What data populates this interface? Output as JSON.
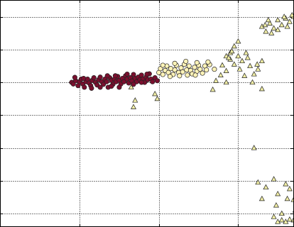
{
  "chart_data": {
    "type": "scatter",
    "title": "",
    "xlabel": "",
    "ylabel": "",
    "xlim": [
      -1,
      2.7
    ],
    "ylim": [
      -3.2,
      3.7
    ],
    "grid": true,
    "grid_style": "dotted",
    "x_ticks": [
      0,
      1,
      2
    ],
    "y_ticks": [
      -2.8,
      -1.8,
      -0.8,
      0.2,
      1.2,
      2.2,
      3.2
    ],
    "tick_labels_visible": false,
    "colors": {
      "dark_red": "#7a0f2e",
      "cream": "#fff3b8",
      "light_yellow": "#f1eea6",
      "edge": "#222222"
    },
    "series": [
      {
        "marker": "circle",
        "color": "#7a0f2e",
        "points": [
          [
            -0.1,
            1.2
          ],
          [
            -0.08,
            1.15
          ],
          [
            -0.05,
            1.25
          ],
          [
            -0.02,
            1.1
          ],
          [
            0.0,
            1.22
          ],
          [
            0.02,
            1.3
          ],
          [
            0.04,
            1.15
          ],
          [
            0.06,
            1.05
          ],
          [
            0.08,
            1.22
          ],
          [
            0.1,
            1.3
          ],
          [
            0.12,
            1.18
          ],
          [
            0.14,
            1.1
          ],
          [
            0.16,
            1.26
          ],
          [
            0.18,
            1.34
          ],
          [
            0.2,
            1.2
          ],
          [
            0.22,
            1.12
          ],
          [
            0.24,
            1.28
          ],
          [
            0.26,
            1.36
          ],
          [
            0.28,
            1.22
          ],
          [
            0.3,
            1.14
          ],
          [
            0.32,
            1.3
          ],
          [
            0.34,
            1.22
          ],
          [
            0.36,
            1.05
          ],
          [
            0.38,
            1.34
          ],
          [
            0.4,
            1.26
          ],
          [
            0.42,
            1.14
          ],
          [
            0.44,
            1.3
          ],
          [
            0.46,
            1.22
          ],
          [
            0.48,
            1.38
          ],
          [
            0.5,
            1.26
          ],
          [
            0.52,
            1.15
          ],
          [
            0.54,
            1.32
          ],
          [
            0.56,
            1.22
          ],
          [
            0.58,
            1.4
          ],
          [
            0.6,
            1.3
          ],
          [
            0.62,
            1.18
          ],
          [
            0.64,
            1.34
          ],
          [
            0.66,
            1.24
          ],
          [
            0.68,
            1.44
          ],
          [
            0.7,
            1.32
          ],
          [
            0.72,
            1.22
          ],
          [
            0.74,
            1.36
          ],
          [
            0.76,
            1.28
          ],
          [
            0.78,
            1.42
          ],
          [
            0.8,
            1.3
          ],
          [
            0.82,
            1.2
          ],
          [
            0.84,
            1.36
          ],
          [
            0.86,
            1.28
          ],
          [
            0.88,
            1.46
          ],
          [
            0.9,
            1.3
          ],
          [
            0.92,
            1.22
          ],
          [
            0.95,
            1.34
          ],
          [
            0.98,
            1.25
          ],
          [
            0.26,
            1.05
          ],
          [
            0.5,
            1.05
          ],
          [
            0.15,
            1.02
          ],
          [
            0.68,
            1.14
          ],
          [
            0.35,
            1.4
          ],
          [
            0.05,
            1.32
          ],
          [
            0.45,
            1.4
          ],
          [
            -0.06,
            1.35
          ],
          [
            0.6,
            1.45
          ],
          [
            0.78,
            1.2
          ],
          [
            0.4,
            1.08
          ],
          [
            0.85,
            1.45
          ]
        ]
      },
      {
        "marker": "circle",
        "color": "#fff3b8",
        "points": [
          [
            1.0,
            1.5
          ],
          [
            1.02,
            1.62
          ],
          [
            1.05,
            1.44
          ],
          [
            1.08,
            1.56
          ],
          [
            1.1,
            1.7
          ],
          [
            1.12,
            1.5
          ],
          [
            1.15,
            1.62
          ],
          [
            1.18,
            1.44
          ],
          [
            1.2,
            1.58
          ],
          [
            1.22,
            1.72
          ],
          [
            1.25,
            1.5
          ],
          [
            1.28,
            1.64
          ],
          [
            1.3,
            1.52
          ],
          [
            1.32,
            1.75
          ],
          [
            1.35,
            1.58
          ],
          [
            1.38,
            1.7
          ],
          [
            1.4,
            1.56
          ],
          [
            1.42,
            1.46
          ],
          [
            1.45,
            1.66
          ],
          [
            1.48,
            1.54
          ],
          [
            1.5,
            1.72
          ],
          [
            1.52,
            1.6
          ],
          [
            1.55,
            1.48
          ],
          [
            1.58,
            1.7
          ],
          [
            1.6,
            1.58
          ],
          [
            1.64,
            1.74
          ],
          [
            1.14,
            1.38
          ],
          [
            1.26,
            1.4
          ],
          [
            1.36,
            1.42
          ],
          [
            1.46,
            1.42
          ],
          [
            1.05,
            1.72
          ],
          [
            1.2,
            1.78
          ],
          [
            1.34,
            1.84
          ],
          [
            1.48,
            1.8
          ],
          [
            1.62,
            1.82
          ],
          [
            1.7,
            1.6
          ]
        ]
      },
      {
        "marker": "triangle",
        "color": "#f1eea6",
        "points": [
          [
            0.65,
            1.05
          ],
          [
            0.7,
            0.65
          ],
          [
            0.68,
            0.45
          ],
          [
            0.95,
            0.85
          ],
          [
            0.98,
            0.7
          ],
          [
            1.68,
            0.98
          ],
          [
            1.72,
            1.25
          ],
          [
            1.78,
            1.42
          ],
          [
            1.85,
            1.2
          ],
          [
            1.8,
            1.72
          ],
          [
            1.85,
            1.55
          ],
          [
            1.9,
            1.9
          ],
          [
            1.95,
            1.75
          ],
          [
            2.0,
            2.0
          ],
          [
            2.05,
            1.85
          ],
          [
            2.1,
            2.1
          ],
          [
            2.12,
            1.95
          ],
          [
            2.02,
            1.6
          ],
          [
            2.08,
            1.4
          ],
          [
            2.15,
            1.7
          ],
          [
            1.9,
            2.1
          ],
          [
            1.95,
            2.3
          ],
          [
            2.0,
            2.45
          ],
          [
            1.85,
            2.0
          ],
          [
            1.92,
            2.15
          ],
          [
            1.88,
            1.95
          ],
          [
            2.18,
            1.2
          ],
          [
            2.25,
            1.6
          ],
          [
            2.3,
            1.85
          ],
          [
            2.2,
            1.45
          ],
          [
            2.24,
            1.75
          ],
          [
            2.3,
            1.0
          ],
          [
            2.3,
            2.9
          ],
          [
            2.35,
            2.75
          ],
          [
            2.4,
            3.0
          ],
          [
            2.45,
            2.85
          ],
          [
            2.5,
            3.1
          ],
          [
            2.55,
            2.95
          ],
          [
            2.6,
            3.15
          ],
          [
            2.65,
            3.05
          ],
          [
            2.7,
            3.2
          ],
          [
            2.72,
            3.3
          ],
          [
            2.38,
            3.1
          ],
          [
            2.5,
            2.8
          ],
          [
            2.62,
            2.9
          ],
          [
            2.68,
            3.25
          ],
          [
            2.42,
            2.7
          ],
          [
            2.58,
            3.2
          ],
          [
            2.34,
            2.95
          ],
          [
            2.2,
            -0.8
          ],
          [
            2.25,
            -1.85
          ],
          [
            2.35,
            -2.0
          ],
          [
            2.3,
            -2.35
          ],
          [
            2.6,
            -1.9
          ],
          [
            2.65,
            -2.05
          ],
          [
            2.62,
            -2.35
          ],
          [
            2.7,
            -2.38
          ],
          [
            2.45,
            -1.75
          ],
          [
            2.5,
            -2.2
          ],
          [
            2.48,
            -2.55
          ],
          [
            2.45,
            -2.9
          ],
          [
            2.55,
            -2.8
          ],
          [
            2.5,
            -3.05
          ],
          [
            2.6,
            -3.05
          ],
          [
            2.7,
            -3.0
          ],
          [
            2.75,
            -2.92
          ],
          [
            2.8,
            -3.0
          ],
          [
            2.85,
            -2.95
          ],
          [
            2.72,
            -2.7
          ],
          [
            2.9,
            -2.92
          ],
          [
            2.65,
            -2.98
          ],
          [
            2.78,
            -2.85
          ],
          [
            2.55,
            -3.0
          ],
          [
            2.85,
            -2.7
          ]
        ]
      }
    ]
  }
}
